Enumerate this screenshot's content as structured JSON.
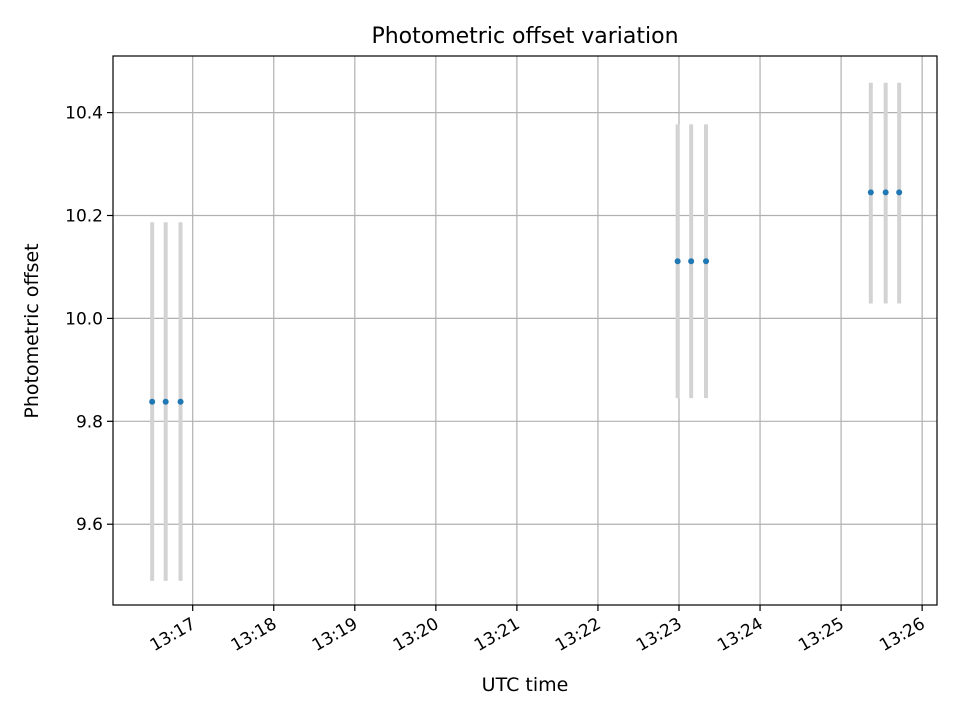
{
  "chart_data": {
    "type": "scatter",
    "title": "Photometric offset variation",
    "xlabel": "UTC time",
    "ylabel": "Photometric offset",
    "x_ticks": [
      "13:17",
      "13:18",
      "13:19",
      "13:20",
      "13:21",
      "13:22",
      "13:23",
      "13:24",
      "13:25",
      "13:26"
    ],
    "y_ticks": [
      "9.6",
      "9.8",
      "10.0",
      "10.2",
      "10.4"
    ],
    "y_tick_values": [
      9.6,
      9.8,
      10.0,
      10.2,
      10.4
    ],
    "xlim": [
      "13:16:01",
      "13:26:11"
    ],
    "ylim": [
      9.443,
      10.51
    ],
    "grid": true,
    "colors": {
      "marker": "#1f77b4",
      "errorbar": "#d3d3d3",
      "grid": "#b0b0b0"
    },
    "points": [
      {
        "x": "13:16:30",
        "y": 9.838,
        "yerr_low": 9.49,
        "yerr_high": 10.187
      },
      {
        "x": "13:16:40",
        "y": 9.838,
        "yerr_low": 9.49,
        "yerr_high": 10.187
      },
      {
        "x": "13:16:51",
        "y": 9.838,
        "yerr_low": 9.49,
        "yerr_high": 10.187
      },
      {
        "x": "13:22:59",
        "y": 10.111,
        "yerr_low": 9.845,
        "yerr_high": 10.377
      },
      {
        "x": "13:23:09",
        "y": 10.111,
        "yerr_low": 9.845,
        "yerr_high": 10.377
      },
      {
        "x": "13:23:20",
        "y": 10.111,
        "yerr_low": 9.845,
        "yerr_high": 10.377
      },
      {
        "x": "13:25:22",
        "y": 10.245,
        "yerr_low": 10.029,
        "yerr_high": 10.458
      },
      {
        "x": "13:25:33",
        "y": 10.245,
        "yerr_low": 10.029,
        "yerr_high": 10.458
      },
      {
        "x": "13:25:43",
        "y": 10.245,
        "yerr_low": 10.029,
        "yerr_high": 10.458
      }
    ]
  }
}
